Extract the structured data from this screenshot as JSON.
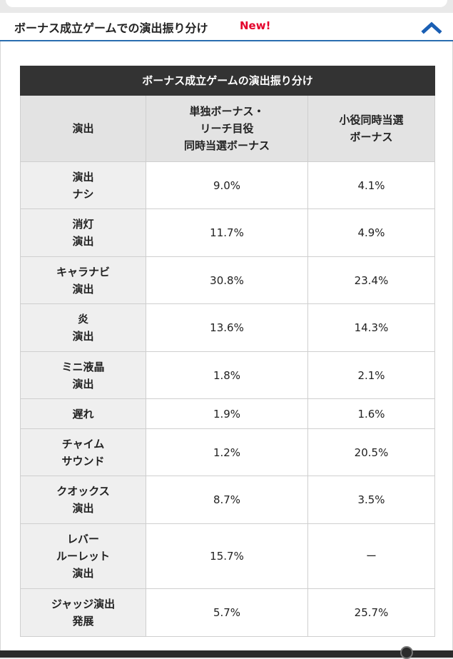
{
  "accordion": {
    "title": "ボーナス成立ゲームでの演出振り分け",
    "badge": "New!",
    "toggle_icon": "chevron-up-icon",
    "accent_color": "#2a6db0",
    "badge_color": "#e4002b"
  },
  "table": {
    "caption": "ボーナス成立ゲームの演出振り分け",
    "headers": {
      "col1": "演出",
      "col2": [
        "単独ボーナス・",
        "リーチ目役",
        "同時当選ボーナス"
      ],
      "col3": [
        "小役同時当選",
        "ボーナス"
      ]
    },
    "rows": [
      {
        "label": [
          "演出",
          "ナシ"
        ],
        "solo": "9.0%",
        "combo": "4.1%"
      },
      {
        "label": [
          "消灯",
          "演出"
        ],
        "solo": "11.7%",
        "combo": "4.9%"
      },
      {
        "label": [
          "キャラナビ",
          "演出"
        ],
        "solo": "30.8%",
        "combo": "23.4%"
      },
      {
        "label": [
          "炎",
          "演出"
        ],
        "solo": "13.6%",
        "combo": "14.3%"
      },
      {
        "label": [
          "ミニ液晶",
          "演出"
        ],
        "solo": "1.8%",
        "combo": "2.1%"
      },
      {
        "label": [
          "遅れ"
        ],
        "solo": "1.9%",
        "combo": "1.6%"
      },
      {
        "label": [
          "チャイム",
          "サウンド"
        ],
        "solo": "1.2%",
        "combo": "20.5%"
      },
      {
        "label": [
          "クオックス",
          "演出"
        ],
        "solo": "8.7%",
        "combo": "3.5%"
      },
      {
        "label": [
          "レバー",
          "ルーレット",
          "演出"
        ],
        "solo": "15.7%",
        "combo": "ー"
      },
      {
        "label": [
          "ジャッジ演出",
          "発展"
        ],
        "solo": "5.7%",
        "combo": "25.7%"
      }
    ]
  }
}
